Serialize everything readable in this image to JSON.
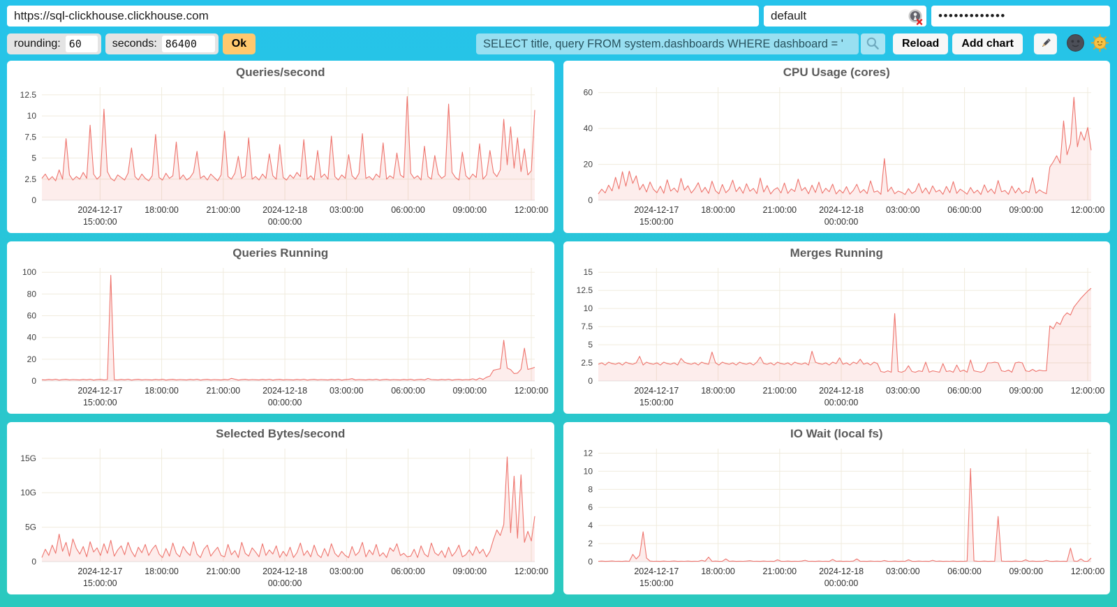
{
  "connection": {
    "url": "https://sql-clickhouse.clickhouse.com",
    "user": "default",
    "user_icon": "broken-image-icon",
    "password_mask": "•••••••••••••"
  },
  "controls": {
    "rounding_label": "rounding:",
    "rounding_value": "60",
    "seconds_label": "seconds:",
    "seconds_value": "86400",
    "ok_label": "Ok",
    "query_value": "SELECT title, query FROM system.dashboards WHERE dashboard = '",
    "search_icon": "magnifier-icon",
    "reload_label": "Reload",
    "add_chart_label": "Add chart",
    "edit_icon": "pencil-icon",
    "theme_dark_icon": "new-moon-face-icon",
    "theme_light_icon": "sun-with-face-icon"
  },
  "colors": {
    "background_top": "#26C3EB",
    "background_bottom": "#2BC9BE",
    "line": "#EE736C",
    "area": "rgba(238,115,108,0.13)",
    "grid": "#F0EBDD",
    "zero_line": "#E4E4E4",
    "ok_button": "#FFC86E",
    "query_input_bg": "#98DFF1",
    "card_bg": "#FFFFFF",
    "title_text": "#5A5A5A"
  },
  "x_axis": {
    "ticks": [
      {
        "pos": 0.118,
        "lines": [
          "2024-12-17",
          "15:00:00"
        ]
      },
      {
        "pos": 0.243,
        "lines": [
          "18:00:00"
        ]
      },
      {
        "pos": 0.368,
        "lines": [
          "21:00:00"
        ]
      },
      {
        "pos": 0.493,
        "lines": [
          "2024-12-18",
          "00:00:00"
        ]
      },
      {
        "pos": 0.618,
        "lines": [
          "03:00:00"
        ]
      },
      {
        "pos": 0.743,
        "lines": [
          "06:00:00"
        ]
      },
      {
        "pos": 0.868,
        "lines": [
          "09:00:00"
        ]
      },
      {
        "pos": 0.993,
        "lines": [
          "12:00:00"
        ]
      }
    ]
  },
  "chart_data": [
    {
      "type": "area",
      "title": "Queries/second",
      "ymax": 13.4,
      "yticks": [
        [
          0,
          "0"
        ],
        [
          2.5,
          "2.5"
        ],
        [
          5,
          "5"
        ],
        [
          7.5,
          "7.5"
        ],
        [
          10,
          "10"
        ],
        [
          12.5,
          "12.5"
        ]
      ],
      "values": [
        2.6,
        3.1,
        2.4,
        2.8,
        2.3,
        3.6,
        2.5,
        7.3,
        3.0,
        2.4,
        2.8,
        2.5,
        3.3,
        2.6,
        8.9,
        3.1,
        2.5,
        2.9,
        10.8,
        3.4,
        2.6,
        2.3,
        3.0,
        2.7,
        2.4,
        3.2,
        6.2,
        2.8,
        2.4,
        3.1,
        2.6,
        2.3,
        2.9,
        7.8,
        2.7,
        2.4,
        3.2,
        2.6,
        2.9,
        6.9,
        2.5,
        3.0,
        2.4,
        2.7,
        3.3,
        5.8,
        2.6,
        2.9,
        2.4,
        3.1,
        2.7,
        2.3,
        3.0,
        8.2,
        2.8,
        2.5,
        3.2,
        5.2,
        2.6,
        2.9,
        7.4,
        2.5,
        2.8,
        2.4,
        3.1,
        2.6,
        5.5,
        2.9,
        2.5,
        6.6,
        2.7,
        2.4,
        3.0,
        2.6,
        3.3,
        2.8,
        7.2,
        2.5,
        2.9,
        2.4,
        5.9,
        2.7,
        3.1,
        2.5,
        7.6,
        2.8,
        2.4,
        3.0,
        2.6,
        5.4,
        2.9,
        2.5,
        3.2,
        7.9,
        2.6,
        2.8,
        2.4,
        3.1,
        2.7,
        6.8,
        2.5,
        2.9,
        2.6,
        5.6,
        3.0,
        2.7,
        12.3,
        3.2,
        2.6,
        2.9,
        2.4,
        6.4,
        2.8,
        2.5,
        5.3,
        3.1,
        2.6,
        2.9,
        11.4,
        3.3,
        2.7,
        2.4,
        5.7,
        2.9,
        2.5,
        3.1,
        2.7,
        6.7,
        2.5,
        3.0,
        5.9,
        3.3,
        2.8,
        3.6,
        9.6,
        4.2,
        8.7,
        3.8,
        7.4,
        3.4,
        6.1,
        3.0,
        3.5,
        10.7
      ]
    },
    {
      "type": "area",
      "title": "CPU Usage (cores)",
      "ymax": 63,
      "yticks": [
        [
          0,
          "0"
        ],
        [
          20,
          "20"
        ],
        [
          40,
          "40"
        ],
        [
          60,
          "60"
        ]
      ],
      "values": [
        3.5,
        6.2,
        4.1,
        8.4,
        5.2,
        12.8,
        6.3,
        15.9,
        7.8,
        16.2,
        9.4,
        13.6,
        5.8,
        8.9,
        4.6,
        10.2,
        6.1,
        4.2,
        7.8,
        3.9,
        11.4,
        5.1,
        6.8,
        4.4,
        12.2,
        5.6,
        8.1,
        4.0,
        6.4,
        9.8,
        4.5,
        7.2,
        3.8,
        10.6,
        5.3,
        3.6,
        8.8,
        4.2,
        6.1,
        11.2,
        4.8,
        7.4,
        3.9,
        9.2,
        5.0,
        6.6,
        3.7,
        12.4,
        4.6,
        8.2,
        3.5,
        5.9,
        7.0,
        4.1,
        9.6,
        3.8,
        6.3,
        4.9,
        11.8,
        5.4,
        7.1,
        3.6,
        8.4,
        4.3,
        10.1,
        3.9,
        6.7,
        4.7,
        9.0,
        3.5,
        5.8,
        4.0,
        7.6,
        3.4,
        5.5,
        8.9,
        4.2,
        6.0,
        3.7,
        10.8,
        4.5,
        5.2,
        3.3,
        23.2,
        4.8,
        7.3,
        3.6,
        5.1,
        4.4,
        3.2,
        6.5,
        3.8,
        5.0,
        9.4,
        4.1,
        6.9,
        3.5,
        8.0,
        4.6,
        5.7,
        3.3,
        7.7,
        4.2,
        10.4,
        3.8,
        6.2,
        4.9,
        3.4,
        7.1,
        4.0,
        5.6,
        3.2,
        8.6,
        4.4,
        6.3,
        3.6,
        11.0,
        4.7,
        5.4,
        3.3,
        7.9,
        4.1,
        6.8,
        3.7,
        5.2,
        4.3,
        12.6,
        3.9,
        5.8,
        4.5,
        3.6,
        18.5,
        21.4,
        24.8,
        20.6,
        44.2,
        25.3,
        31.6,
        57.4,
        29.8,
        38.2,
        33.4,
        40.6,
        27.9
      ]
    },
    {
      "type": "area",
      "title": "Queries Running",
      "ymax": 104,
      "yticks": [
        [
          0,
          "0"
        ],
        [
          20,
          "20"
        ],
        [
          40,
          "40"
        ],
        [
          60,
          "60"
        ],
        [
          80,
          "80"
        ],
        [
          100,
          "100"
        ]
      ],
      "values": [
        1.1,
        0.9,
        1.4,
        1.0,
        1.6,
        0.8,
        1.2,
        1.5,
        0.9,
        1.3,
        1.1,
        0.9,
        1.4,
        1.0,
        1.6,
        0.8,
        1.2,
        1.5,
        0.9,
        1.3,
        97.2,
        1.1,
        0.9,
        1.4,
        1.0,
        1.6,
        0.8,
        1.2,
        1.5,
        0.9,
        1.3,
        1.1,
        0.9,
        1.4,
        1.0,
        1.6,
        0.8,
        1.2,
        1.5,
        0.9,
        1.3,
        1.1,
        0.9,
        1.4,
        1.0,
        1.6,
        0.8,
        1.2,
        1.5,
        0.9,
        1.3,
        1.1,
        0.9,
        1.4,
        1.0,
        2.4,
        1.6,
        0.8,
        1.2,
        1.5,
        0.9,
        1.3,
        1.1,
        0.9,
        1.4,
        1.0,
        1.6,
        0.8,
        1.2,
        1.5,
        0.9,
        1.3,
        1.1,
        0.9,
        1.4,
        1.0,
        1.6,
        0.8,
        1.2,
        1.5,
        0.9,
        1.3,
        1.1,
        0.9,
        1.4,
        1.0,
        1.6,
        0.8,
        1.2,
        1.5,
        2.1,
        0.9,
        1.3,
        1.1,
        0.9,
        1.4,
        1.0,
        1.6,
        0.8,
        1.2,
        1.5,
        0.9,
        1.3,
        1.1,
        0.9,
        1.4,
        1.0,
        1.6,
        0.8,
        1.2,
        1.5,
        0.9,
        2.3,
        1.3,
        1.1,
        0.9,
        1.4,
        1.0,
        1.6,
        0.8,
        1.2,
        1.5,
        0.9,
        1.3,
        1.1,
        2.0,
        0.9,
        2.6,
        1.4,
        3.4,
        4.5,
        9.8,
        10.6,
        11.2,
        37.4,
        11.8,
        10.4,
        6.8,
        7.2,
        10.8,
        30.2,
        10.6,
        11.4,
        12.6
      ]
    },
    {
      "type": "area",
      "title": "Merges Running",
      "ymax": 15.6,
      "yticks": [
        [
          0,
          "0"
        ],
        [
          2.5,
          "2.5"
        ],
        [
          5,
          "5"
        ],
        [
          7.5,
          "7.5"
        ],
        [
          10,
          "10"
        ],
        [
          12.5,
          "12.5"
        ],
        [
          15,
          "15"
        ]
      ],
      "values": [
        2.3,
        2.5,
        2.2,
        2.6,
        2.4,
        2.3,
        2.5,
        2.2,
        2.6,
        2.4,
        2.3,
        2.5,
        3.4,
        2.2,
        2.6,
        2.4,
        2.3,
        2.5,
        2.2,
        2.6,
        2.4,
        2.3,
        2.5,
        2.2,
        3.1,
        2.6,
        2.4,
        2.3,
        2.5,
        2.2,
        2.6,
        2.4,
        2.3,
        4.0,
        2.5,
        2.2,
        2.6,
        2.4,
        2.3,
        2.5,
        2.2,
        2.6,
        2.4,
        2.3,
        2.5,
        2.2,
        2.6,
        3.3,
        2.4,
        2.3,
        2.5,
        2.2,
        2.6,
        2.4,
        2.3,
        2.5,
        2.2,
        2.6,
        2.4,
        2.3,
        2.5,
        2.2,
        4.1,
        2.6,
        2.4,
        2.3,
        2.5,
        2.2,
        2.6,
        2.4,
        3.2,
        2.3,
        2.5,
        2.2,
        2.6,
        2.4,
        3.0,
        2.3,
        2.5,
        2.2,
        2.6,
        2.4,
        1.3,
        1.2,
        1.4,
        1.2,
        9.3,
        1.3,
        1.2,
        1.4,
        2.1,
        1.3,
        1.2,
        1.4,
        1.3,
        2.6,
        1.2,
        1.4,
        1.3,
        1.2,
        2.4,
        1.3,
        1.4,
        1.2,
        2.2,
        1.3,
        1.5,
        1.2,
        2.9,
        1.4,
        1.3,
        1.2,
        1.4,
        2.5,
        2.5,
        2.6,
        2.5,
        1.4,
        1.3,
        1.5,
        1.2,
        2.5,
        2.6,
        2.5,
        1.4,
        1.3,
        1.6,
        1.3,
        1.5,
        1.4,
        1.4,
        7.6,
        7.2,
        8.1,
        7.8,
        8.9,
        9.4,
        9.1,
        10.2,
        10.8,
        11.4,
        11.9,
        12.4,
        12.8
      ]
    },
    {
      "type": "area",
      "title": "Selected Bytes/second",
      "ymax": 16.4,
      "yticks": [
        [
          0,
          "0"
        ],
        [
          5,
          "5G"
        ],
        [
          10,
          "10G"
        ],
        [
          15,
          "15G"
        ]
      ],
      "values": [
        0.6,
        1.8,
        0.9,
        2.4,
        1.2,
        4.0,
        1.5,
        2.8,
        0.8,
        3.3,
        1.9,
        1.1,
        2.2,
        0.7,
        2.9,
        1.4,
        2.0,
        0.9,
        2.6,
        1.2,
        3.1,
        0.8,
        1.7,
        2.3,
        1.0,
        2.8,
        1.5,
        0.7,
        2.1,
        1.3,
        2.5,
        0.9,
        1.8,
        2.4,
        1.1,
        0.6,
        1.9,
        0.8,
        2.7,
        1.2,
        0.7,
        2.2,
        1.4,
        0.9,
        2.9,
        1.1,
        0.6,
        1.8,
        2.4,
        0.8,
        1.5,
        2.1,
        0.9,
        0.7,
        2.5,
        1.0,
        1.6,
        0.6,
        2.8,
        1.2,
        0.8,
        2.0,
        1.4,
        0.7,
        2.6,
        0.9,
        1.7,
        1.1,
        2.3,
        0.6,
        1.5,
        0.8,
        2.1,
        0.6,
        1.3,
        2.7,
        0.9,
        1.6,
        0.7,
        2.4,
        1.0,
        0.6,
        1.9,
        0.8,
        2.6,
        1.2,
        0.7,
        1.5,
        0.9,
        0.6,
        2.2,
        0.9,
        1.4,
        2.8,
        0.7,
        1.7,
        1.0,
        2.5,
        0.8,
        1.3,
        0.6,
        2.0,
        1.5,
        2.6,
        0.9,
        1.2,
        0.7,
        0.8,
        1.8,
        0.6,
        2.3,
        1.1,
        0.7,
        2.7,
        1.3,
        0.9,
        1.6,
        0.6,
        2.1,
        0.8,
        1.4,
        2.4,
        0.7,
        1.0,
        1.7,
        0.9,
        2.2,
        1.2,
        1.8,
        0.7,
        1.5,
        3.2,
        4.6,
        3.8,
        5.4,
        15.2,
        4.2,
        12.4,
        3.4,
        12.6,
        2.8,
        4.4,
        3.0,
        6.6
      ]
    },
    {
      "type": "area",
      "title": "IO Wait (local fs)",
      "ymax": 12.5,
      "yticks": [
        [
          0,
          "0"
        ],
        [
          2,
          "2"
        ],
        [
          4,
          "4"
        ],
        [
          6,
          "6"
        ],
        [
          8,
          "8"
        ],
        [
          10,
          "10"
        ],
        [
          12,
          "12"
        ]
      ],
      "values": [
        0.04,
        0.06,
        0.03,
        0.05,
        0.07,
        0.04,
        0.05,
        0.03,
        0.06,
        0.04,
        0.8,
        0.3,
        0.7,
        3.3,
        0.4,
        0.06,
        0.04,
        0.05,
        0.03,
        0.06,
        0.04,
        0.05,
        0.07,
        0.03,
        0.05,
        0.04,
        0.06,
        0.03,
        0.05,
        0.04,
        0.15,
        0.05,
        0.5,
        0.04,
        0.06,
        0.03,
        0.05,
        0.3,
        0.04,
        0.06,
        0.03,
        0.05,
        0.04,
        0.06,
        0.1,
        0.04,
        0.05,
        0.03,
        0.06,
        0.04,
        0.05,
        0.03,
        0.2,
        0.05,
        0.04,
        0.06,
        0.03,
        0.05,
        0.04,
        0.06,
        0.15,
        0.04,
        0.05,
        0.03,
        0.06,
        0.04,
        0.05,
        0.03,
        0.25,
        0.04,
        0.06,
        0.03,
        0.05,
        0.04,
        0.06,
        0.3,
        0.04,
        0.05,
        0.03,
        0.06,
        0.04,
        0.05,
        0.03,
        0.12,
        0.05,
        0.04,
        0.06,
        0.03,
        0.05,
        0.04,
        0.2,
        0.05,
        0.03,
        0.06,
        0.04,
        0.05,
        0.03,
        0.15,
        0.04,
        0.06,
        0.03,
        0.05,
        0.04,
        0.06,
        0.03,
        0.05,
        0.04,
        0.06,
        10.3,
        0.08,
        0.05,
        0.04,
        0.06,
        0.03,
        0.05,
        0.04,
        5.0,
        0.06,
        0.04,
        0.05,
        0.03,
        0.06,
        0.04,
        0.05,
        0.2,
        0.04,
        0.06,
        0.03,
        0.05,
        0.04,
        0.15,
        0.05,
        0.03,
        0.06,
        0.04,
        0.05,
        0.03,
        1.5,
        0.06,
        0.04,
        0.3,
        0.05,
        0.04,
        0.4
      ]
    }
  ]
}
